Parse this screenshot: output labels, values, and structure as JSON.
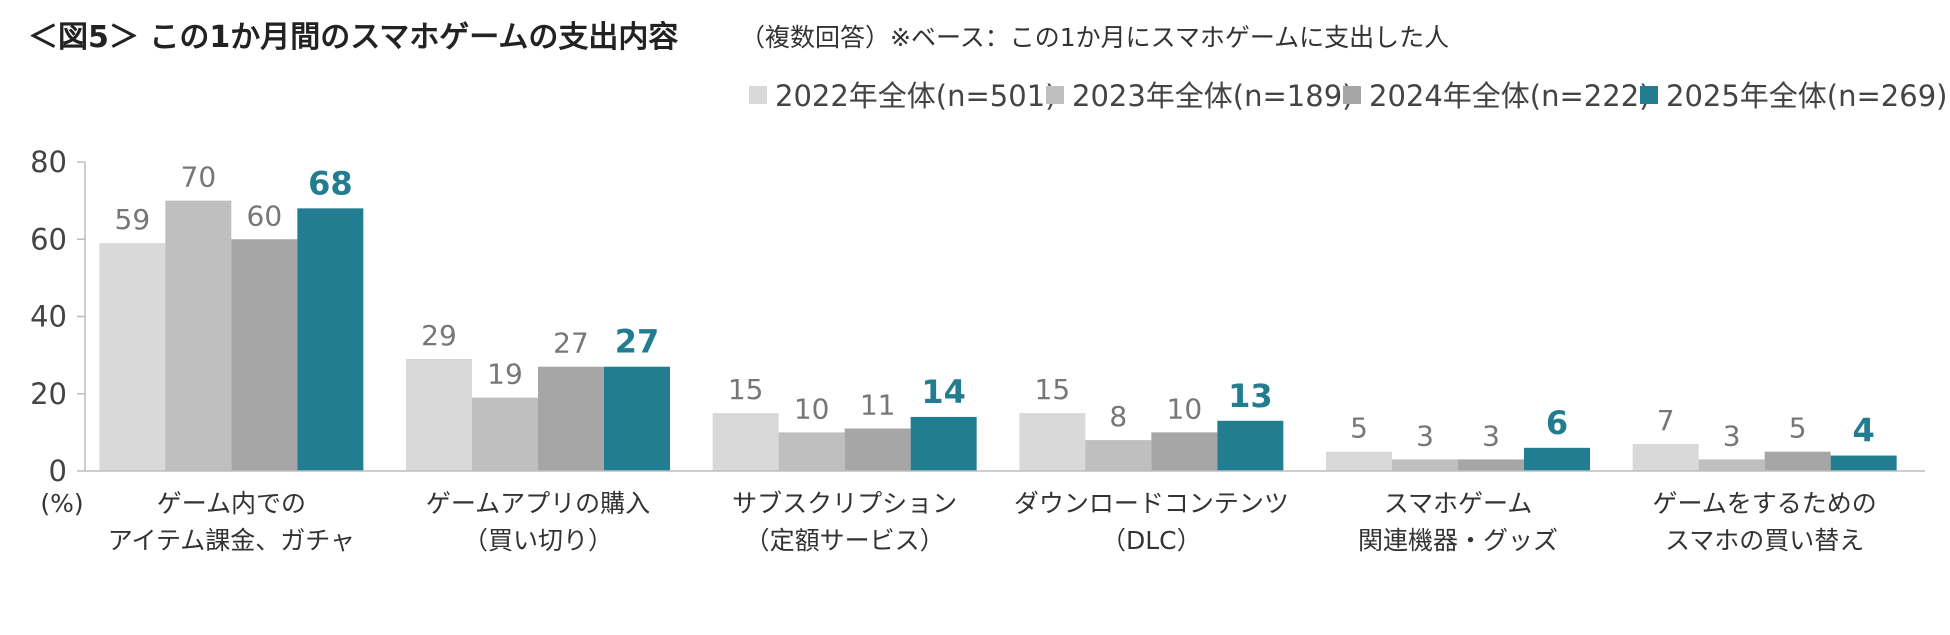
{
  "title": "＜図5＞ この1か月間のスマホゲームの支出内容",
  "subtitle": "（複数回答）※ベース：この1か月にスマホゲームに支出した人",
  "chart_data": {
    "type": "bar",
    "ylabel": "(%)",
    "ylim": [
      0,
      80
    ],
    "yticks": [
      0,
      20,
      40,
      60,
      80
    ],
    "grid": false,
    "legend_position": "top-right",
    "categories": [
      [
        "ゲーム内での",
        "アイテム課金、ガチャ"
      ],
      [
        "ゲームアプリの購入",
        "（買い切り）"
      ],
      [
        "サブスクリプション",
        "（定額サービス）"
      ],
      [
        "ダウンロードコンテンツ",
        "（DLC）"
      ],
      [
        "スマホゲーム",
        "関連機器・グッズ"
      ],
      [
        "ゲームをするための",
        "スマホの買い替え"
      ]
    ],
    "series": [
      {
        "name": "2022年全体(n=501)",
        "color": "#d9d9d9",
        "values": [
          59,
          29,
          15,
          15,
          5,
          7
        ]
      },
      {
        "name": "2023年全体(n=189)",
        "color": "#bfbfbf",
        "values": [
          70,
          19,
          10,
          8,
          3,
          3
        ]
      },
      {
        "name": "2024年全体(n=222)",
        "color": "#a6a6a6",
        "values": [
          60,
          27,
          11,
          10,
          3,
          5
        ]
      },
      {
        "name": "2025年全体(n=269)",
        "color": "#237d91",
        "values": [
          68,
          27,
          14,
          13,
          6,
          4
        ],
        "highlight": true
      }
    ]
  }
}
